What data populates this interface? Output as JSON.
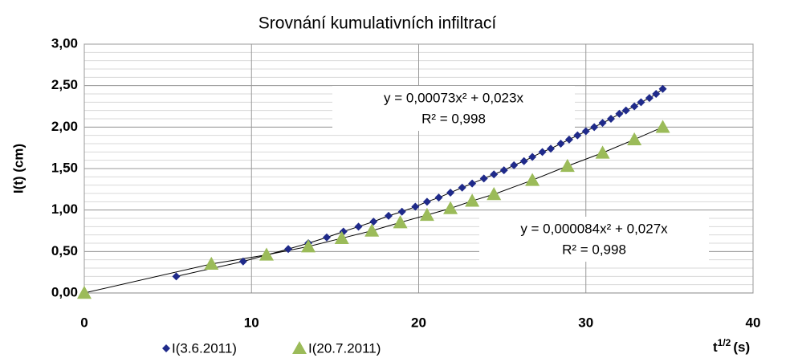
{
  "chart_data": {
    "type": "scatter",
    "title": "Srovnání kumulativních infiltrací",
    "y_label": "I(t) (cm)",
    "x_label": {
      "base": "t",
      "sup": "1/2",
      "unit": "(s)"
    },
    "xlim": [
      0,
      40
    ],
    "xticks": [
      0,
      10,
      20,
      30,
      40
    ],
    "ylim": [
      0,
      3
    ],
    "yticks": [
      {
        "value": 0,
        "label": "0,00"
      },
      {
        "value": 0.5,
        "label": "0,50"
      },
      {
        "value": 1,
        "label": "1,00"
      },
      {
        "value": 1.5,
        "label": "1,50"
      },
      {
        "value": 2,
        "label": "2,00"
      },
      {
        "value": 2.5,
        "label": "2,50"
      },
      {
        "value": 3,
        "label": "3,00"
      }
    ],
    "y_minor_step": 0.1,
    "grid": true,
    "legend": "bottom",
    "series": [
      {
        "name": "I(3.6.2011)",
        "color": "#1f2a8a",
        "marker": "diamond",
        "x": [
          5.5,
          9.5,
          12.2,
          13.4,
          14.5,
          15.5,
          16.4,
          17.3,
          18.2,
          19.0,
          19.8,
          20.5,
          21.2,
          21.9,
          22.6,
          23.2,
          23.9,
          24.5,
          25.1,
          25.7,
          26.3,
          26.8,
          27.4,
          27.9,
          28.5,
          29.0,
          29.5,
          30.0,
          30.5,
          31.0,
          31.5,
          32.0,
          32.4,
          32.9,
          33.3,
          33.8,
          34.2,
          34.6
        ],
        "values": [
          0.2,
          0.38,
          0.53,
          0.6,
          0.67,
          0.74,
          0.8,
          0.86,
          0.93,
          0.98,
          1.04,
          1.1,
          1.15,
          1.21,
          1.27,
          1.32,
          1.38,
          1.43,
          1.48,
          1.54,
          1.59,
          1.64,
          1.7,
          1.74,
          1.8,
          1.85,
          1.9,
          1.95,
          2.0,
          2.05,
          2.1,
          2.16,
          2.2,
          2.25,
          2.3,
          2.35,
          2.4,
          2.46
        ],
        "trendline": "y = 0,00073x² + 0,023x",
        "r2": "R² = 0,998"
      },
      {
        "name": "I(20.7.2011)",
        "color": "#9bbb59",
        "marker": "triangle",
        "x": [
          0,
          7.6,
          10.9,
          13.4,
          15.4,
          17.2,
          18.9,
          20.5,
          21.9,
          23.2,
          24.5,
          26.8,
          28.9,
          31.0,
          32.9,
          34.6
        ],
        "values": [
          0,
          0.35,
          0.46,
          0.56,
          0.66,
          0.75,
          0.85,
          0.94,
          1.02,
          1.11,
          1.19,
          1.36,
          1.53,
          1.69,
          1.85,
          2.0
        ],
        "trendline": "y = 0,000084x² + 0,027x",
        "r2": "R² = 0,998"
      }
    ]
  }
}
